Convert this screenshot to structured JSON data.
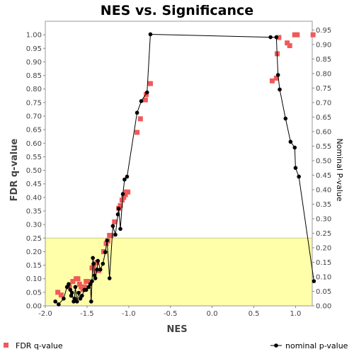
{
  "chart_data": {
    "type": "scatter",
    "title": "NES vs. Significance",
    "xlabel": "NES",
    "ylabel": "FDR q-value",
    "ylabel_right": "Nominal P-value",
    "xlim": [
      -2.0,
      1.2
    ],
    "ylim": [
      0.0,
      1.05
    ],
    "ylim_right": [
      0.0,
      0.98
    ],
    "x_ticks": [
      "-2.0",
      "-1.5",
      "-1.0",
      "-0.5",
      "0.0",
      "0.5",
      "1.0"
    ],
    "y_ticks": [
      "0.00",
      "0.05",
      "0.10",
      "0.15",
      "0.20",
      "0.25",
      "0.30",
      "0.35",
      "0.40",
      "0.45",
      "0.50",
      "0.55",
      "0.60",
      "0.65",
      "0.70",
      "0.75",
      "0.80",
      "0.85",
      "0.90",
      "0.95",
      "1.00"
    ],
    "y_ticks_right": [
      "0.00",
      "0.05",
      "0.10",
      "0.15",
      "0.20",
      "0.25",
      "0.30",
      "0.35",
      "0.40",
      "0.45",
      "0.50",
      "0.55",
      "0.60",
      "0.65",
      "0.70",
      "0.75",
      "0.80",
      "0.85",
      "0.90",
      "0.95"
    ],
    "highlight_region": {
      "y_from": 0.0,
      "y_to": 0.25,
      "color": "#ffffaa"
    },
    "series": [
      {
        "name": "FDR q-value",
        "axis": "left",
        "style": "square-markers",
        "color": "#f05a5a",
        "x": [
          -1.85,
          -1.81,
          -1.71,
          -1.67,
          -1.63,
          -1.61,
          -1.59,
          -1.57,
          -1.55,
          -1.53,
          -1.51,
          -1.49,
          -1.44,
          -1.42,
          -1.4,
          -1.38,
          -1.36,
          -1.3,
          -1.27,
          -1.25,
          -1.23,
          -1.21,
          -1.17,
          -1.12,
          -1.1,
          -1.08,
          -1.06,
          -1.04,
          -1.03,
          -1.01,
          -0.9,
          -0.86,
          -0.8,
          -0.79,
          -0.74,
          0.72,
          0.77,
          0.78,
          0.8,
          0.9,
          0.93,
          0.99,
          1.02,
          1.21
        ],
        "y": [
          0.05,
          0.04,
          0.07,
          0.09,
          0.1,
          0.1,
          0.08,
          0.07,
          0.06,
          0.07,
          0.09,
          0.09,
          0.14,
          0.15,
          0.13,
          0.16,
          0.13,
          0.2,
          0.23,
          0.24,
          0.26,
          0.26,
          0.31,
          0.36,
          0.37,
          0.39,
          0.4,
          0.41,
          0.42,
          0.42,
          0.64,
          0.69,
          0.76,
          0.78,
          0.82,
          0.83,
          0.84,
          0.93,
          0.99,
          0.97,
          0.96,
          1.0,
          1.0,
          1.0
        ]
      },
      {
        "name": "nominal p-value",
        "axis": "right",
        "style": "line-with-dots",
        "color": "#000000",
        "x": [
          -1.88,
          -1.84,
          -1.78,
          -1.74,
          -1.72,
          -1.7,
          -1.69,
          -1.68,
          -1.66,
          -1.65,
          -1.64,
          -1.62,
          -1.6,
          -1.58,
          -1.56,
          -1.53,
          -1.51,
          -1.48,
          -1.46,
          -1.45,
          -1.44,
          -1.43,
          -1.42,
          -1.41,
          -1.4,
          -1.38,
          -1.37,
          -1.34,
          -1.31,
          -1.28,
          -1.26,
          -1.23,
          -1.19,
          -1.16,
          -1.13,
          -1.12,
          -1.1,
          -1.07,
          -1.05,
          -1.02,
          -0.9,
          -0.85,
          -0.78,
          -0.74,
          0.7,
          0.77,
          0.79,
          0.81,
          0.88,
          0.94,
          0.99,
          1.0,
          1.04,
          1.22
        ],
        "y": [
          0.015,
          0.005,
          0.025,
          0.065,
          0.075,
          0.055,
          0.035,
          0.045,
          0.015,
          0.025,
          0.065,
          0.015,
          0.045,
          0.025,
          0.035,
          0.055,
          0.055,
          0.065,
          0.075,
          0.015,
          0.085,
          0.165,
          0.145,
          0.105,
          0.095,
          0.125,
          0.155,
          0.125,
          0.145,
          0.185,
          0.225,
          0.095,
          0.275,
          0.245,
          0.315,
          0.335,
          0.265,
          0.385,
          0.435,
          0.445,
          0.665,
          0.705,
          0.735,
          0.935,
          0.925,
          0.925,
          0.795,
          0.745,
          0.645,
          0.565,
          0.545,
          0.475,
          0.445,
          0.085
        ]
      }
    ],
    "legend": {
      "placement": "bottom",
      "entries": [
        "FDR q-value",
        "nominal p-value"
      ]
    }
  }
}
